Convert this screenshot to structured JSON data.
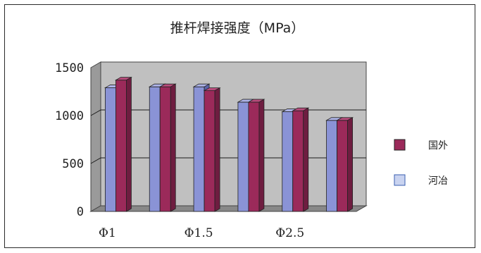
{
  "chart_data": {
    "type": "bar",
    "title": "推杆焊接强度（MPa）",
    "categories": [
      "Φ1",
      "",
      "Φ1.5",
      "",
      "Φ2.5",
      ""
    ],
    "x_tick_labels": [
      "Φ1",
      "Φ1.5",
      "Φ2.5"
    ],
    "series": [
      {
        "name": "河冶",
        "values": [
          1290,
          1300,
          1300,
          1140,
          1040,
          950
        ]
      },
      {
        "name": "国外",
        "values": [
          1370,
          1300,
          1260,
          1140,
          1050,
          950
        ]
      }
    ],
    "ylim": [
      0,
      1500
    ],
    "yticks": [
      "0",
      "500",
      "1000",
      "1500"
    ],
    "legend_placement": "right",
    "grid": true
  },
  "colors": {
    "series_heyе": "#8a93d6",
    "series_guowai": "#9b2a5a",
    "plot_wall": "#c0c0c0",
    "floor": "#888888"
  }
}
